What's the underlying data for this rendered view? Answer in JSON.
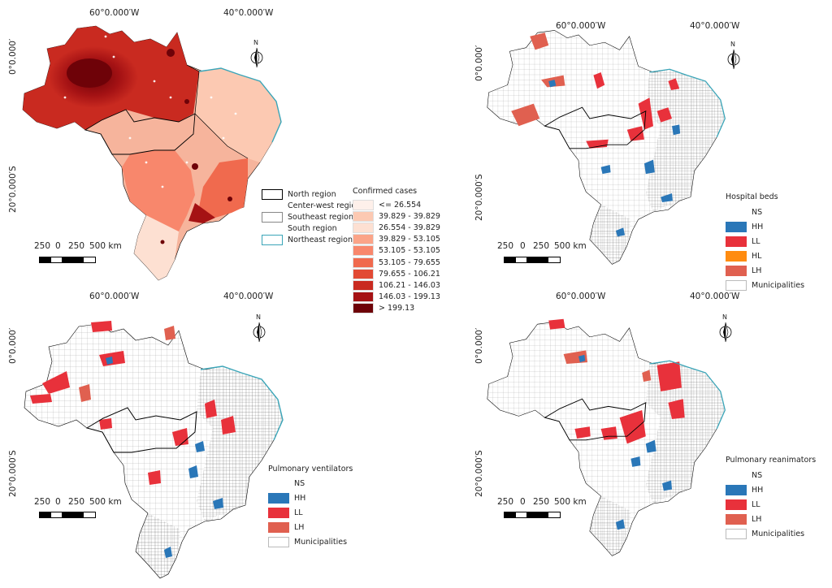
{
  "coords": {
    "lon1": "60°0.000′W",
    "lon2": "40°0.000′W",
    "lat1": "0°0.000′",
    "lat2": "20°0.000′S"
  },
  "north_label": "N",
  "scale": {
    "labels": [
      "250",
      "0",
      "250",
      "500 km"
    ]
  },
  "regions_legend": [
    {
      "label": "North region",
      "border": "#000000"
    },
    {
      "label": "Center-west region",
      "border": "#ffffff"
    },
    {
      "label": "Southeast region",
      "border": "#888888"
    },
    {
      "label": "South region",
      "border": "#ffffff"
    },
    {
      "label": "Northeast region",
      "border": "#3aa5b8"
    }
  ],
  "cases_legend": {
    "title": "Confirmed cases",
    "classes": [
      {
        "label": "<= 26.554",
        "color": "#fef0ea"
      },
      {
        "label": "39.829 - 39.829",
        "color": "#fcc9b2"
      },
      {
        "label": "26.554 - 39.829",
        "color": "#fde0d2"
      },
      {
        "label": "39.829 - 53.105",
        "color": "#fba488"
      },
      {
        "label": "53.105 - 53.105",
        "color": "#f8876c"
      },
      {
        "label": "53.105 - 79.655",
        "color": "#f06a4e"
      },
      {
        "label": "79.655 - 106.21",
        "color": "#e24a34"
      },
      {
        "label": "106.21 - 146.03",
        "color": "#c92a20"
      },
      {
        "label": "146.03 - 199.13",
        "color": "#a51214"
      },
      {
        "label": "> 199.13",
        "color": "#6e0208"
      }
    ]
  },
  "lisa_colors": {
    "HH": "#2a77b8",
    "LL": "#e8313b",
    "HL": "#ff8c10",
    "LH": "#e06050",
    "NS": "#ffffff"
  },
  "panels": [
    {
      "title": "Hospital beds",
      "items": [
        {
          "label": "NS",
          "key": "NS"
        },
        {
          "label": "HH",
          "key": "HH"
        },
        {
          "label": "LL",
          "key": "LL"
        },
        {
          "label": "HL",
          "key": "HL"
        },
        {
          "label": "LH",
          "key": "LH"
        },
        {
          "label": "Municipalities",
          "key": "MUN"
        }
      ]
    },
    {
      "title": "Pulmonary ventilators",
      "items": [
        {
          "label": "NS",
          "key": "NS"
        },
        {
          "label": "HH",
          "key": "HH"
        },
        {
          "label": "LL",
          "key": "LL"
        },
        {
          "label": "LH",
          "key": "LH"
        },
        {
          "label": "Municipalities",
          "key": "MUN"
        }
      ]
    },
    {
      "title": "Pulmonary reanimators",
      "items": [
        {
          "label": "NS",
          "key": "NS"
        },
        {
          "label": "HH",
          "key": "HH"
        },
        {
          "label": "LL",
          "key": "LL"
        },
        {
          "label": "LH",
          "key": "LH"
        },
        {
          "label": "Municipalities",
          "key": "MUN"
        }
      ]
    }
  ]
}
